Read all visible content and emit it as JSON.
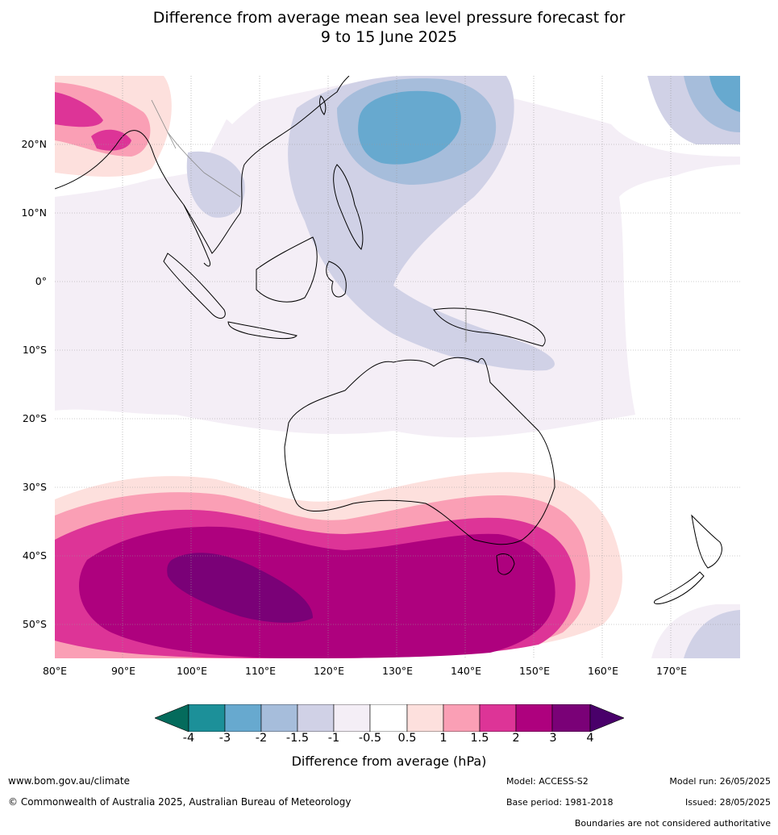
{
  "title": {
    "line1": "Difference from average mean sea level pressure forecast for",
    "line2": "9 to 15 June 2025"
  },
  "map": {
    "lat_labels": [
      "20°N",
      "10°N",
      "0°",
      "10°S",
      "20°S",
      "30°S",
      "40°S",
      "50°S"
    ],
    "lon_labels": [
      "80°E",
      "90°E",
      "100°E",
      "110°E",
      "120°E",
      "130°E",
      "140°E",
      "150°E",
      "160°E",
      "170°E"
    ]
  },
  "colorbar": {
    "title": "Difference from average (hPa)",
    "ticks": [
      "-4",
      "-3",
      "-2",
      "-1.5",
      "-1",
      "-0.5",
      "0.5",
      "1",
      "1.5",
      "2",
      "3",
      "4"
    ],
    "colors": {
      "lt_-4": "#046b5c",
      "-4_-3": "#1c9099",
      "-3_-2": "#67a9cf",
      "-2_-1.5": "#a6bddb",
      "-1.5_-1": "#d0d1e6",
      "-1_-0.5": "#f4eef6",
      "-0.5_0.5": "#ffffff",
      "0.5_1": "#fde0dd",
      "1_1.5": "#fa9fb5",
      "1.5_2": "#dd3497",
      "2_3": "#ae017e",
      "3_4": "#7a0177",
      "gt_4": "#49006a"
    }
  },
  "footer": {
    "url": "www.bom.gov.au/climate",
    "copyright": "© Commonwealth of Australia 2025, Australian Bureau of Meteorology",
    "model": "Model: ACCESS-S2",
    "base_period": "Base period: 1981-2018",
    "model_run": "Model run: 26/05/2025",
    "issued": "Issued: 28/05/2025",
    "disclaimer": "Boundaries are not considered authoritative"
  }
}
